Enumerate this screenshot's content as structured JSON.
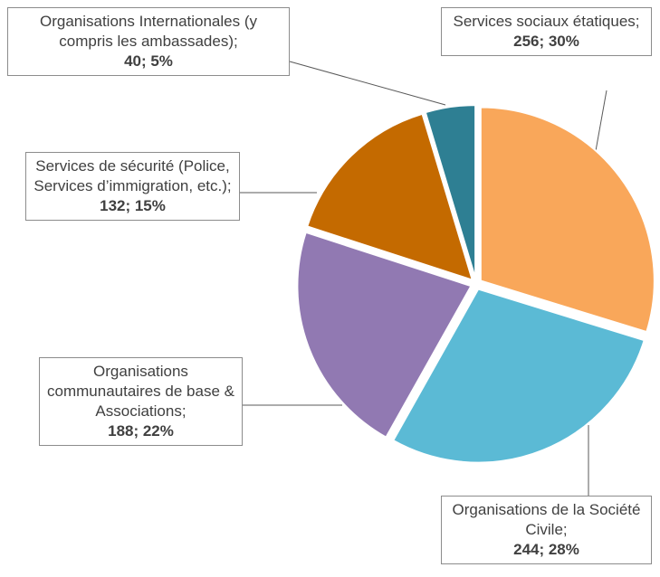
{
  "chart_data": {
    "type": "pie",
    "categories": [
      "Services sociaux étatiques;",
      "Organisations de la Société Civile;",
      "Organisations communautaires de base & Associations;",
      "Services de sécurité (Police, Services d’immigration, etc.);",
      "Organisations Internationales (y compris les ambassades);"
    ],
    "values": [
      256,
      244,
      188,
      132,
      40
    ],
    "value_labels": [
      "256; 30%",
      "244; 28%",
      "188; 22%",
      "132; 15%",
      "40; 5%"
    ],
    "colors": [
      "#f9a75a",
      "#5bbad5",
      "#9179b2",
      "#c46a00",
      "#2e7f93"
    ]
  }
}
